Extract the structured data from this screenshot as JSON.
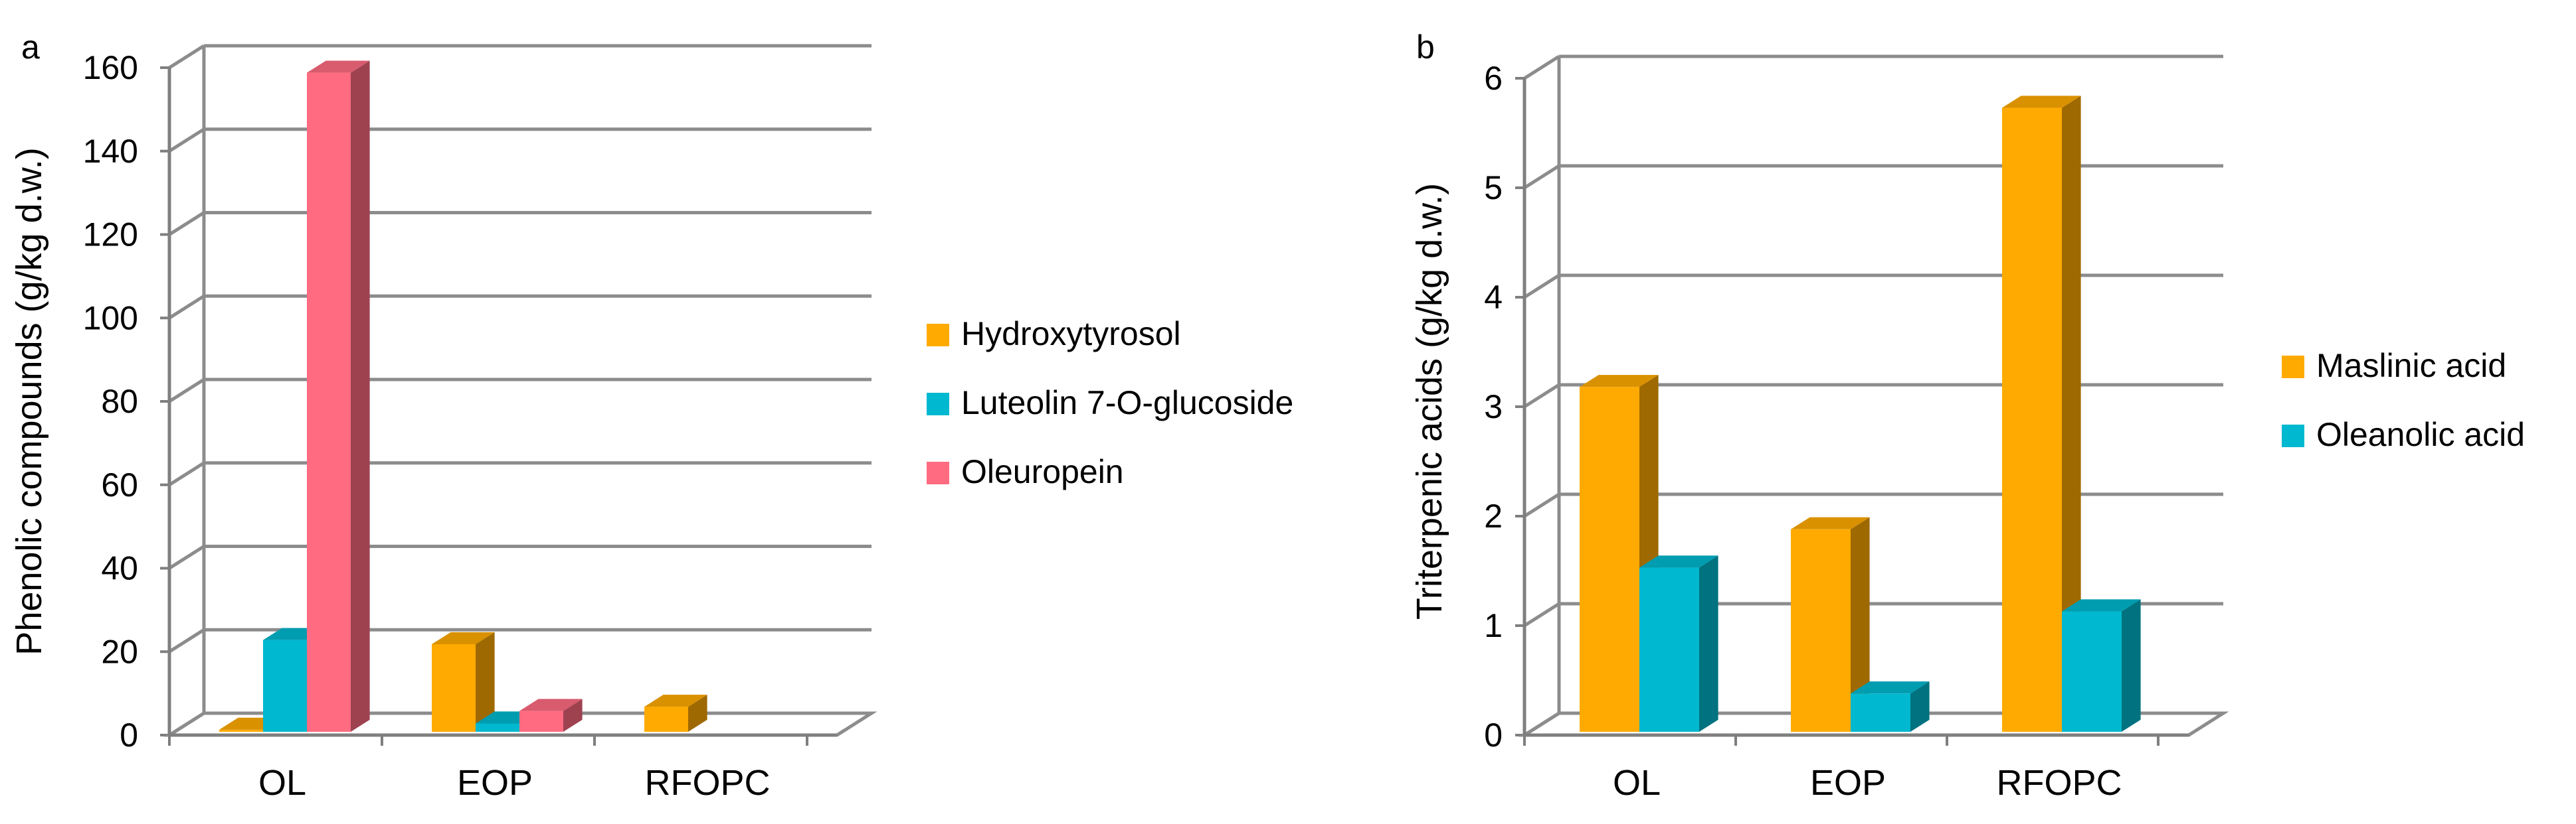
{
  "colors": {
    "grid": "#8c8c8c",
    "axis": "#7f7f7f",
    "hydroxytyrosol": "#ffaa00",
    "luteolin": "#00b8cf",
    "oleuropein": "#ff6b81",
    "maslinic": "#ffaa00",
    "oleanolic": "#00b8cf"
  },
  "chart_data": [
    {
      "panel_label": "a",
      "type": "bar",
      "title": "",
      "xlabel": "",
      "ylabel": "Phenolic compounds (g/kg d.w.)",
      "ylim": [
        0,
        160
      ],
      "y_ticks": [
        "0",
        "20",
        "40",
        "60",
        "80",
        "100",
        "120",
        "140",
        "160"
      ],
      "categories": [
        "OL",
        "EOP",
        "RFOPC"
      ],
      "series": [
        {
          "name": "Hydroxytyrosol",
          "color_key": "hydroxytyrosol",
          "values": [
            0.5,
            21,
            6
          ]
        },
        {
          "name": "Luteolin 7-O-glucoside",
          "color_key": "luteolin",
          "values": [
            22,
            2,
            0
          ]
        },
        {
          "name": "Oleuropein",
          "color_key": "oleuropein",
          "values": [
            158,
            5,
            0
          ]
        }
      ],
      "legend_position": "right"
    },
    {
      "panel_label": "b",
      "type": "bar",
      "title": "",
      "xlabel": "",
      "ylabel": "Triterpenic acids (g/kg d.w.)",
      "ylim": [
        0,
        6
      ],
      "y_ticks": [
        "0",
        "1",
        "2",
        "3",
        "4",
        "5",
        "6"
      ],
      "categories": [
        "OL",
        "EOP",
        "RFOPC"
      ],
      "series": [
        {
          "name": "Maslinic acid",
          "color_key": "maslinic",
          "values": [
            3.15,
            1.85,
            5.7
          ]
        },
        {
          "name": "Oleanolic acid",
          "color_key": "oleanolic",
          "values": [
            1.5,
            0.35,
            1.1
          ]
        }
      ],
      "legend_position": "right"
    }
  ]
}
